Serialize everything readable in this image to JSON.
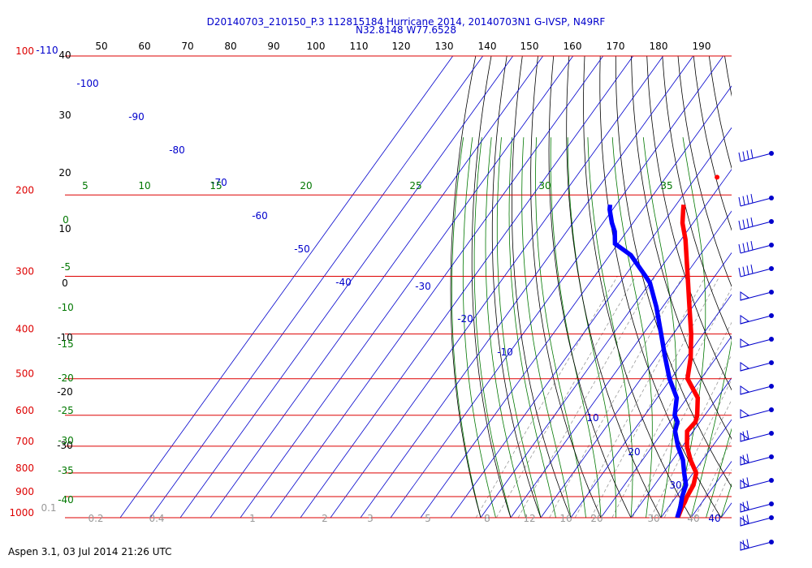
{
  "header": {
    "title_line1": "D20140703_210150_P.3 112815184 Hurricane 2014, 20140703N1 G-IVSP, N49RF",
    "title_line2": "N32.8148 W77.6528"
  },
  "footer": {
    "text": "Aspen 3.1, 03 Jul 2014  21:26 UTC"
  },
  "colors": {
    "isobar": "#dd0000",
    "isotherm": "#0000cc",
    "theta": "#000000",
    "theta_e": "#007700",
    "mixing_ratio": "#999999",
    "temperature": "#ff0000",
    "dewpoint": "#0000ff"
  },
  "chart_data": {
    "type": "line",
    "chart_kind": "skew-T log-P sounding",
    "pressure_levels": [
      100,
      200,
      300,
      400,
      500,
      600,
      700,
      800,
      900,
      1000
    ],
    "pressure_tick_labels": [
      "100",
      "200",
      "300",
      "400",
      "500",
      "600",
      "700",
      "800",
      "900",
      "1000"
    ],
    "y_scale": "log",
    "ylim_hPa": [
      1000,
      100
    ],
    "isotherm_values": [
      -110,
      -100,
      -90,
      -80,
      -70,
      -60,
      -50,
      -40,
      -30,
      -20,
      -10,
      0,
      10,
      20,
      30,
      40
    ],
    "isotherm_labels": [
      "-110",
      "-100",
      "-90",
      "-80",
      "-70",
      "-60",
      "-50",
      "-40",
      "-30",
      "-20",
      "-10",
      "0",
      "10",
      "20",
      "30",
      "40"
    ],
    "theta_top_labels": [
      "50",
      "60",
      "70",
      "80",
      "90",
      "100",
      "110",
      "120",
      "130",
      "140",
      "150",
      "160",
      "170",
      "180",
      "190"
    ],
    "theta_left_labels": [
      "40",
      "30",
      "20",
      "10",
      "0",
      "-10",
      "-20",
      "-30"
    ],
    "theta_e_values": [
      5,
      10,
      15,
      20,
      25,
      30,
      35
    ],
    "theta_e_left_labels": [
      "0",
      "-5",
      "-10",
      "-15",
      "-20",
      "-25",
      "-30",
      "-35",
      "-40"
    ],
    "mixing_ratio_values": [
      0.1,
      0.2,
      0.4,
      1,
      2,
      3,
      5,
      8,
      12,
      16,
      20,
      30,
      40
    ],
    "mixing_ratio_labels": [
      "0.1",
      "0.2",
      "0.4",
      "1",
      "2",
      "3",
      "5",
      "8",
      "12",
      "16",
      "20",
      "30",
      "40"
    ],
    "series": [
      {
        "name": "Temperature",
        "pressure": [
          1000,
          950,
          925,
          900,
          850,
          800,
          750,
          700,
          650,
          620,
          600,
          550,
          500,
          450,
          400,
          350,
          300,
          250,
          230,
          215,
          210
        ],
        "temperature": [
          25.6,
          24.5,
          24.2,
          23.6,
          23.0,
          21.0,
          16.0,
          11.5,
          8.0,
          8.5,
          7.5,
          3.5,
          -4.5,
          -8.5,
          -14.0,
          -21.0,
          -29.0,
          -38.5,
          -43.5,
          -46.5,
          -47.5
        ]
      },
      {
        "name": "Dewpoint",
        "pressure": [
          1000,
          950,
          925,
          900,
          850,
          800,
          750,
          700,
          650,
          620,
          600,
          550,
          500,
          450,
          400,
          350,
          310,
          300,
          270,
          255,
          240,
          230,
          215,
          210
        ],
        "temperature": [
          25.4,
          24.0,
          23.0,
          22.0,
          20.5,
          17.0,
          13.5,
          8.5,
          4.0,
          2.5,
          0.0,
          -3.5,
          -10.5,
          -17.0,
          -24.0,
          -32.0,
          -40.0,
          -43.0,
          -53.0,
          -61.0,
          -64.0,
          -67.0,
          -71.0,
          -72.0
        ]
      }
    ],
    "isolated_point": {
      "pressure": 183,
      "temperature": -43
    },
    "wind_barb_pressures": [
      100,
      200,
      250,
      300,
      350,
      400,
      450,
      500,
      550,
      600,
      650,
      700,
      750,
      800,
      850,
      900,
      950,
      1000
    ]
  }
}
